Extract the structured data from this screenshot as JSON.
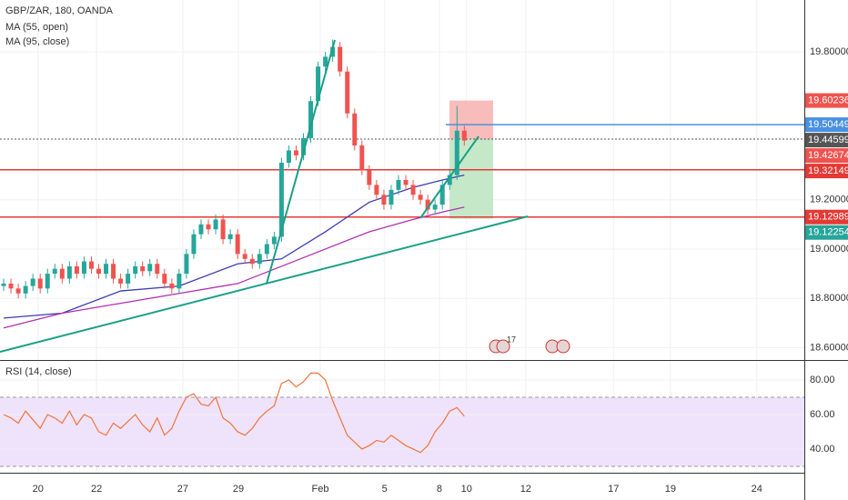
{
  "chart_data": {
    "type": "candlestick",
    "title": "GBP/ZAR, 180, OANDA",
    "up_color": "#26a69a",
    "down_color": "#ef5350",
    "xlim": [
      -0.5,
      109.5
    ],
    "xticks": [
      {
        "value": 4.7,
        "label": "20"
      },
      {
        "value": 12.7,
        "label": "22"
      },
      {
        "value": 24.5,
        "label": "27"
      },
      {
        "value": 32.1,
        "label": "29"
      },
      {
        "value": 43.3,
        "label": "Feb"
      },
      {
        "value": 52.1,
        "label": "5"
      },
      {
        "value": 59.6,
        "label": "8"
      },
      {
        "value": 63.3,
        "label": "10"
      },
      {
        "value": 71.4,
        "label": "12"
      },
      {
        "value": 83.4,
        "label": "17"
      },
      {
        "value": 91.2,
        "label": "19"
      },
      {
        "value": 103,
        "label": "24"
      }
    ],
    "ylim": [
      18.55,
      20.01
    ],
    "yticks": [
      {
        "value": 18.6,
        "label": "18.60000"
      },
      {
        "value": 18.8,
        "label": "18.80000"
      },
      {
        "value": 19,
        "label": "19.00000"
      },
      {
        "value": 19.2,
        "label": "19.20000"
      },
      {
        "value": 19.8,
        "label": "19.80000"
      }
    ],
    "open": [
      18.85,
      18.86,
      18.84,
      18.82,
      18.85,
      18.88,
      18.84,
      18.9,
      18.92,
      18.88,
      18.93,
      18.9,
      18.95,
      18.92,
      18.9,
      18.94,
      18.88,
      18.86,
      18.9,
      18.93,
      18.91,
      18.94,
      18.9,
      18.86,
      18.84,
      18.9,
      18.98,
      19.06,
      19.1,
      19.08,
      19.12,
      19.04,
      19.06,
      18.98,
      18.96,
      18.94,
      18.98,
      19.02,
      19.05,
      19.35,
      19.4,
      19.38,
      19.45,
      19.6,
      19.74,
      19.78,
      19.82,
      19.72,
      19.55,
      19.42,
      19.32,
      19.26,
      19.22,
      19.18,
      19.24,
      19.28,
      19.26,
      19.22,
      19.2,
      19.16,
      19.18,
      19.26,
      19.3,
      19.48
    ],
    "high": [
      18.88,
      18.88,
      18.86,
      18.87,
      18.9,
      18.9,
      18.92,
      18.94,
      18.94,
      18.95,
      18.95,
      18.97,
      18.97,
      18.94,
      18.96,
      18.96,
      18.9,
      18.92,
      18.95,
      18.95,
      18.96,
      18.96,
      18.92,
      18.88,
      18.92,
      19,
      19.08,
      19.12,
      19.12,
      19.14,
      19.14,
      19.08,
      19.08,
      19,
      18.98,
      19,
      19.04,
      19.07,
      19.37,
      19.42,
      19.42,
      19.47,
      19.62,
      19.76,
      19.8,
      19.85,
      19.84,
      19.74,
      19.57,
      19.44,
      19.34,
      19.28,
      19.24,
      19.26,
      19.3,
      19.3,
      19.28,
      19.24,
      19.22,
      19.2,
      19.28,
      19.32,
      19.58,
      19.5
    ],
    "low": [
      18.83,
      18.82,
      18.8,
      18.8,
      18.83,
      18.82,
      18.82,
      18.88,
      18.86,
      18.86,
      18.88,
      18.88,
      18.9,
      18.88,
      18.88,
      18.86,
      18.84,
      18.84,
      18.88,
      18.89,
      18.89,
      18.88,
      18.84,
      18.82,
      18.82,
      18.88,
      18.96,
      19.04,
      19.06,
      19.06,
      19.02,
      19.02,
      18.96,
      18.94,
      18.92,
      18.92,
      18.96,
      19,
      19.03,
      19.33,
      19.36,
      19.36,
      19.43,
      19.58,
      19.72,
      19.76,
      19.7,
      19.53,
      19.4,
      19.3,
      19.24,
      19.2,
      19.16,
      19.16,
      19.22,
      19.24,
      19.2,
      19.18,
      19.14,
      19.14,
      19.16,
      19.24,
      19.28,
      19.42
    ],
    "close": [
      18.86,
      18.84,
      18.82,
      18.85,
      18.88,
      18.84,
      18.9,
      18.92,
      18.88,
      18.93,
      18.9,
      18.95,
      18.92,
      18.9,
      18.94,
      18.88,
      18.86,
      18.9,
      18.93,
      18.91,
      18.94,
      18.9,
      18.86,
      18.84,
      18.9,
      18.98,
      19.06,
      19.1,
      19.08,
      19.12,
      19.04,
      19.06,
      18.98,
      18.96,
      18.94,
      18.98,
      19.02,
      19.05,
      19.35,
      19.4,
      19.38,
      19.45,
      19.6,
      19.74,
      19.78,
      19.82,
      19.72,
      19.55,
      19.42,
      19.32,
      19.26,
      19.22,
      19.18,
      19.24,
      19.28,
      19.26,
      19.22,
      19.2,
      19.16,
      19.18,
      19.26,
      19.3,
      19.48,
      19.44
    ],
    "series": [
      {
        "name": "MA (55, open)",
        "color": "#3c3cb4",
        "x": [
          0,
          8,
          16,
          24,
          32,
          38,
          44,
          50,
          56,
          60,
          63
        ],
        "values": [
          18.72,
          18.74,
          18.83,
          18.85,
          18.94,
          18.96,
          19.07,
          19.19,
          19.25,
          19.28,
          19.3
        ]
      },
      {
        "name": "MA (95, close)",
        "color": "#b02fb0",
        "x": [
          0,
          8,
          16,
          24,
          32,
          38,
          44,
          50,
          56,
          60,
          63
        ],
        "values": [
          18.68,
          18.74,
          18.78,
          18.82,
          18.86,
          18.93,
          19,
          19.07,
          19.12,
          19.15,
          19.17
        ]
      }
    ],
    "levels": [
      {
        "value": 19.60236,
        "color": "#ef5350",
        "line": "none"
      },
      {
        "value": 19.50449,
        "color": "#4a90e2",
        "line": "solid"
      },
      {
        "value": 19.44599,
        "color": "#555555",
        "line": "dashed"
      },
      {
        "value": 19.42674,
        "color": "#ef5350",
        "line": "none"
      },
      {
        "value": 19.32149,
        "color": "#e53935",
        "line": "solid"
      },
      {
        "value": 19.12989,
        "color": "#e53935",
        "line": "solid"
      },
      {
        "value": 19.12254,
        "color": "#26a69a",
        "line": "none"
      }
    ],
    "event_label": "17",
    "rsi": {
      "title": "RSI (14, close)",
      "color": "#f0743e",
      "ylim": [
        26.3,
        91.05
      ],
      "yticks": [
        {
          "value": 40,
          "label": "40.00"
        },
        {
          "value": 60,
          "label": "60.00"
        },
        {
          "value": 80,
          "label": "80.00"
        }
      ],
      "band": [
        30,
        70
      ],
      "values": [
        60,
        58,
        55,
        62,
        57,
        52,
        60,
        58,
        55,
        62,
        54,
        60,
        58,
        50,
        48,
        55,
        52,
        56,
        60,
        54,
        50,
        58,
        48,
        52,
        62,
        70,
        72,
        66,
        65,
        70,
        58,
        55,
        50,
        48,
        52,
        58,
        62,
        65,
        78,
        80,
        76,
        79,
        84,
        84,
        80,
        68,
        58,
        48,
        44,
        40,
        42,
        45,
        44,
        48,
        45,
        42,
        40,
        38,
        42,
        50,
        55,
        62,
        64,
        59
      ]
    }
  }
}
